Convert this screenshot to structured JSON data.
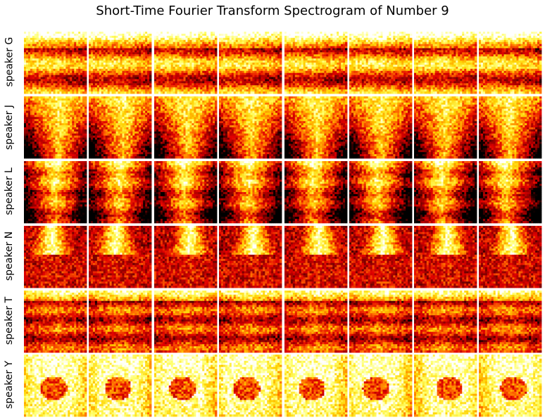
{
  "title": "Short-Time Fourier Transform Spectrogram of Number 9",
  "row_labels": [
    "speaker G",
    "speaker J",
    "speaker L",
    "speaker N",
    "speaker T",
    "speaker Y"
  ],
  "chart_data": {
    "type": "heatmap",
    "title": "Short-Time Fourier Transform Spectrogram of Number 9",
    "rows": [
      "speaker G",
      "speaker J",
      "speaker L",
      "speaker N",
      "speaker T",
      "speaker Y"
    ],
    "columns_per_row": 8,
    "colormap": "hot",
    "colors": [
      "#000000",
      "#8b0000",
      "#e00000",
      "#ff6a00",
      "#ffd000",
      "#ffff66",
      "#ffffff"
    ],
    "axes_visible": false,
    "grid": false
  }
}
